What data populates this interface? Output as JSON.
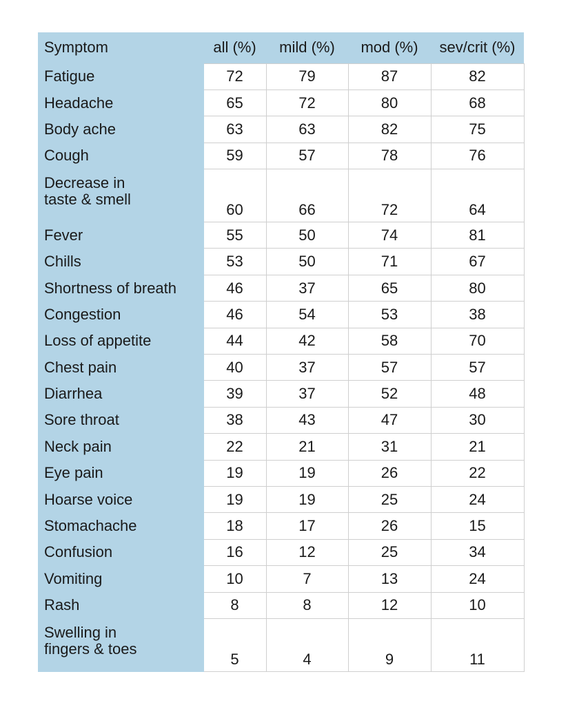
{
  "chart_data": {
    "type": "table",
    "columns": [
      "Symptom",
      "all (%)",
      "mild (%)",
      "mod (%)",
      "sev/crit (%)"
    ],
    "rows": [
      {
        "label": "Fatigue",
        "values": [
          72,
          79,
          87,
          82
        ]
      },
      {
        "label": "Headache",
        "values": [
          65,
          72,
          80,
          68
        ]
      },
      {
        "label": "Body ache",
        "values": [
          63,
          63,
          82,
          75
        ]
      },
      {
        "label": "Cough",
        "values": [
          59,
          57,
          78,
          76
        ]
      },
      {
        "label": "Decrease in\ntaste & smell",
        "values": [
          60,
          66,
          72,
          64
        ]
      },
      {
        "label": "Fever",
        "values": [
          55,
          50,
          74,
          81
        ]
      },
      {
        "label": "Chills",
        "values": [
          53,
          50,
          71,
          67
        ]
      },
      {
        "label": "Shortness of breath",
        "values": [
          46,
          37,
          65,
          80
        ]
      },
      {
        "label": "Congestion",
        "values": [
          46,
          54,
          53,
          38
        ]
      },
      {
        "label": "Loss of appetite",
        "values": [
          44,
          42,
          58,
          70
        ]
      },
      {
        "label": "Chest pain",
        "values": [
          40,
          37,
          57,
          57
        ]
      },
      {
        "label": "Diarrhea",
        "values": [
          39,
          37,
          52,
          48
        ]
      },
      {
        "label": "Sore throat",
        "values": [
          38,
          43,
          47,
          30
        ]
      },
      {
        "label": "Neck pain",
        "values": [
          22,
          21,
          31,
          21
        ]
      },
      {
        "label": "Eye pain",
        "values": [
          19,
          19,
          26,
          22
        ]
      },
      {
        "label": "Hoarse voice",
        "values": [
          19,
          19,
          25,
          24
        ]
      },
      {
        "label": "Stomachache",
        "values": [
          18,
          17,
          26,
          15
        ]
      },
      {
        "label": "Confusion",
        "values": [
          16,
          12,
          25,
          34
        ]
      },
      {
        "label": "Vomiting",
        "values": [
          10,
          7,
          13,
          24
        ]
      },
      {
        "label": "Rash",
        "values": [
          8,
          8,
          12,
          10
        ]
      },
      {
        "label": "Swelling in\nfingers & toes",
        "values": [
          5,
          4,
          9,
          11
        ]
      }
    ],
    "colors": {
      "label_fill": "#b3d4e6",
      "grid": "#cfcfcf"
    }
  }
}
